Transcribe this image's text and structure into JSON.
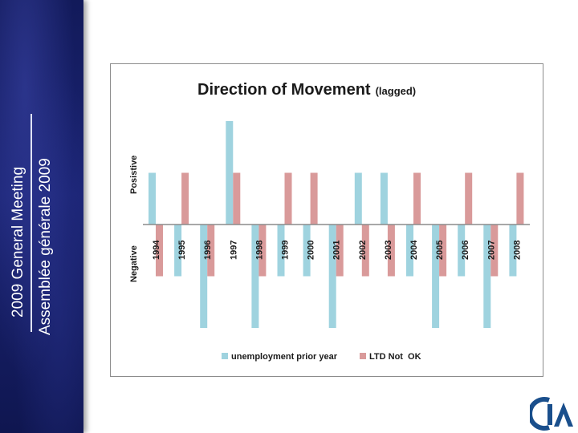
{
  "sidebar": {
    "line1": "2009 General Meeting",
    "line2": "Assemblée générale 2009"
  },
  "chart_data": {
    "type": "bar",
    "title": "Direction of Movement",
    "subtitle": "(lagged)",
    "categories": [
      "1994",
      "1995",
      "1996",
      "1997",
      "1998",
      "1999",
      "2000",
      "2001",
      "2002",
      "2003",
      "2004",
      "2005",
      "2006",
      "2007",
      "2008"
    ],
    "series": [
      {
        "name": "unemployment prior year",
        "color": "#9fd3df",
        "values": [
          1,
          -1,
          -2,
          2,
          -2,
          -1,
          -1,
          -2,
          1,
          1,
          -1,
          -2,
          -1,
          -2,
          -1
        ]
      },
      {
        "name": "LTD Not  OK",
        "color": "#d99a9a",
        "values": [
          -1,
          1,
          -1,
          1,
          -1,
          1,
          1,
          -1,
          -1,
          -1,
          1,
          -1,
          1,
          -1,
          1
        ]
      }
    ],
    "ylim": [
      -2,
      2
    ],
    "y_category_labels": {
      "positive": "Posistive",
      "negative": "Negative"
    },
    "grid": false,
    "legend_position": "bottom"
  },
  "colors": {
    "sidebar": "#1b2474",
    "logo": "#1a4f8c",
    "baseline": "#8c8c8c"
  },
  "logo": {
    "icon": "cia-logo"
  }
}
